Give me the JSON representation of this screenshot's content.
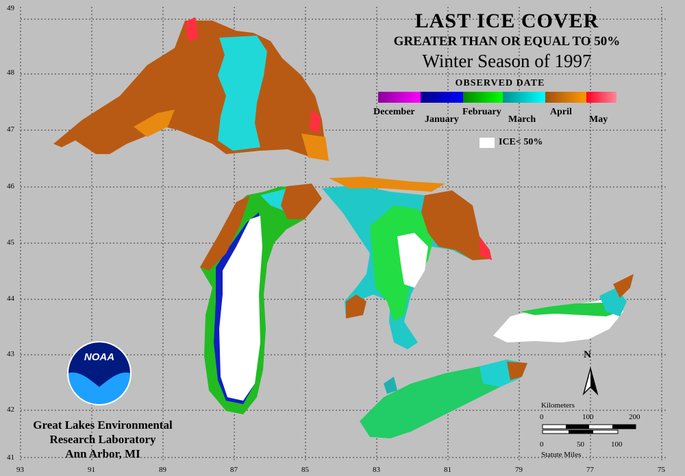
{
  "title": "LAST ICE COVER",
  "subtitle": "GREATER THAN OR EQUAL TO 50%",
  "season": "Winter Season of 1997",
  "legend": {
    "title": "OBSERVED DATE",
    "months": [
      "December",
      "January",
      "February",
      "March",
      "April",
      "May"
    ],
    "ice_label": "ICE< 50%",
    "colors": {
      "December": "#9900cc",
      "January": "#0000cc",
      "February": "#00cc33",
      "March": "#00cccc",
      "April": "#cc6600",
      "May": "#ff2244",
      "ice_less_50": "#ffffff"
    }
  },
  "axes": {
    "latitudes": [
      "49",
      "48",
      "47",
      "46",
      "45",
      "44",
      "43",
      "42",
      "41"
    ],
    "longitudes": [
      "93",
      "91",
      "89",
      "87",
      "85",
      "83",
      "81",
      "79",
      "77",
      "75"
    ]
  },
  "organization": {
    "line1": "Great Lakes Environmental",
    "line2": "Research Laboratory",
    "line3": "Ann Arbor, MI",
    "logo_text": "NOAA"
  },
  "scale": {
    "km_label": "Kilometers",
    "km_ticks": [
      "0",
      "100",
      "200"
    ],
    "mi_label": "Statute Miles",
    "mi_ticks": [
      "0",
      "50",
      "100"
    ]
  },
  "north_label": "N"
}
